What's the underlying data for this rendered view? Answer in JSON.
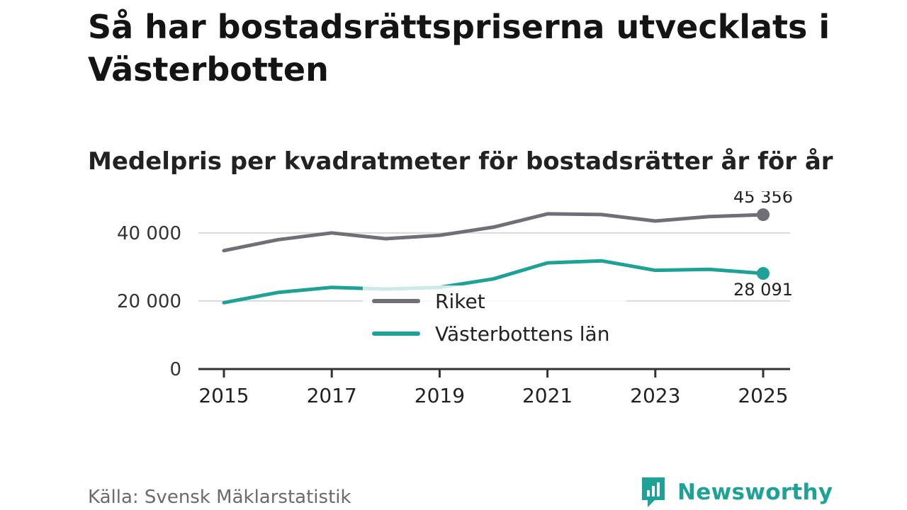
{
  "title": "Så har bostadsrättspriserna utvecklats i Västerbotten",
  "subtitle": "Medelpris per kvadratmeter för bostadsrätter år för år",
  "source": "Källa: Svensk Mäklarstatistik",
  "brand": {
    "name": "Newsworthy",
    "color": "#1ea196"
  },
  "chart_data": {
    "type": "line",
    "title": "Medelpris per kvadratmeter för bostadsrätter år för år",
    "xlabel": "",
    "ylabel": "",
    "x": [
      2015,
      2016,
      2017,
      2018,
      2019,
      2020,
      2021,
      2022,
      2023,
      2024,
      2025
    ],
    "xticks": [
      2015,
      2017,
      2019,
      2021,
      2023,
      2025
    ],
    "xtick_labels": [
      "2015",
      "2017",
      "2019",
      "2021",
      "2023",
      "2025"
    ],
    "yticks": [
      0,
      20000,
      40000
    ],
    "ytick_labels": [
      "0",
      "20 000",
      "40 000"
    ],
    "ylim": [
      0,
      46000
    ],
    "grid": true,
    "legend_position": "center",
    "series": [
      {
        "name": "Riket",
        "color": "#6f6f78",
        "values": [
          34800,
          38000,
          40000,
          38300,
          39300,
          41700,
          45600,
          45400,
          43500,
          44800,
          45356
        ],
        "end_label": "45 356"
      },
      {
        "name": "Västerbottens län",
        "color": "#1ea196",
        "values": [
          19500,
          22500,
          24000,
          23500,
          24000,
          26500,
          31200,
          31800,
          29000,
          29300,
          28091
        ],
        "end_label": "28 091"
      }
    ]
  }
}
